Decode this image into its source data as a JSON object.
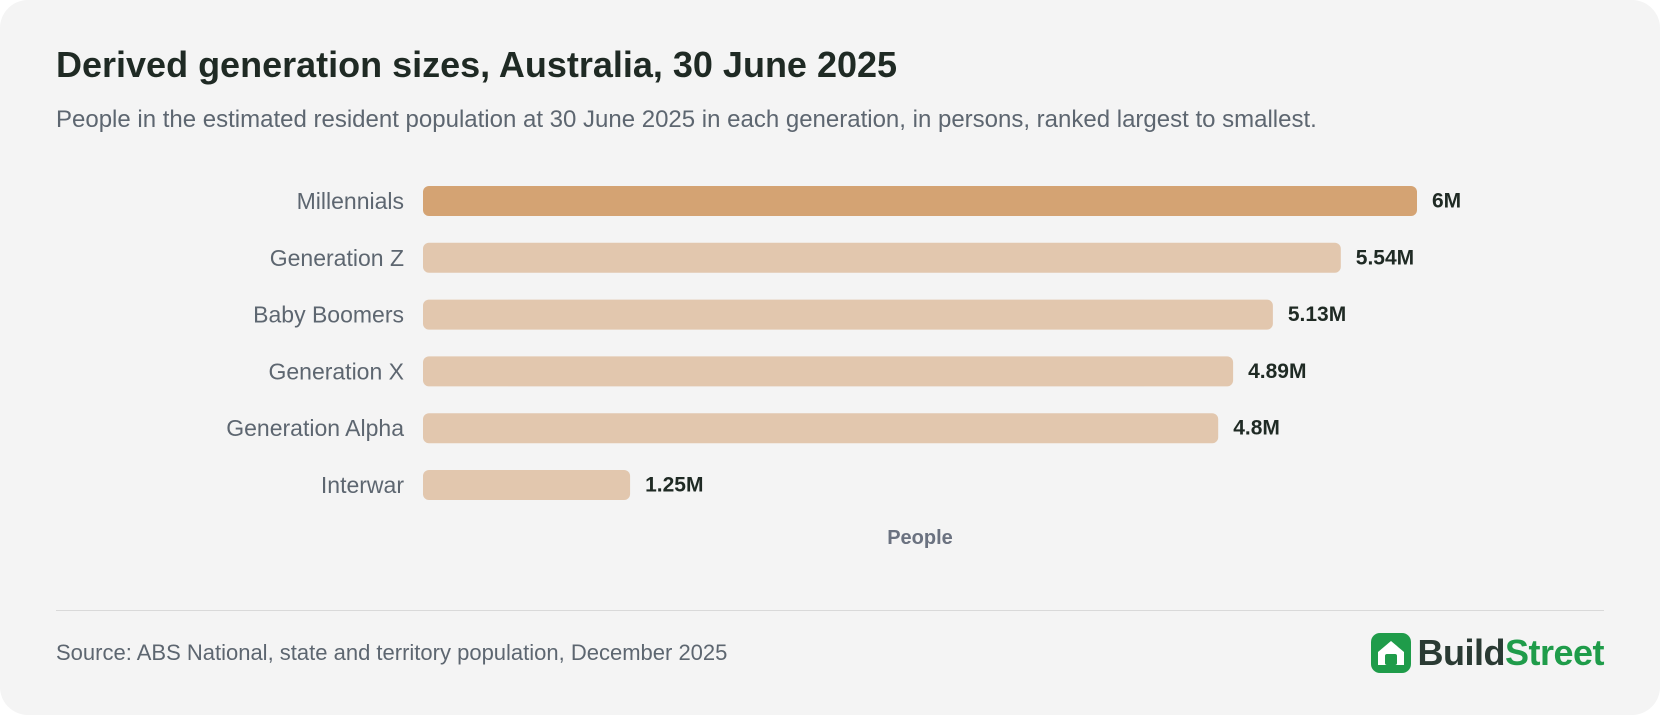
{
  "header": {
    "title": "Derived generation sizes, Australia, 30 June 2025",
    "subtitle": "People in the estimated resident population at 30 June 2025 in each generation, in persons, ranked largest to smallest."
  },
  "chart_data": {
    "type": "bar",
    "orientation": "horizontal",
    "categories": [
      "Millennials",
      "Generation Z",
      "Baby Boomers",
      "Generation X",
      "Generation Alpha",
      "Interwar"
    ],
    "values": [
      6000000,
      5540000,
      5130000,
      4890000,
      4800000,
      1250000
    ],
    "value_labels": [
      "6M",
      "5.54M",
      "5.13M",
      "4.89M",
      "4.8M",
      "1.25M"
    ],
    "xlabel": "People",
    "ylabel": "",
    "xlim": [
      0,
      6000000
    ],
    "grid": false,
    "highlight_index": 0,
    "colors": {
      "highlight": "#d4a373",
      "bar": "#e2c7ae",
      "category_text": "#5d6670",
      "value_text": "#1f2a24",
      "axis_label": "#6b7280"
    }
  },
  "footer": {
    "source": "Source: ABS National, state and territory population, December 2025",
    "logo_part1": "Build",
    "logo_part2": "Street",
    "logo_icon": "house-icon"
  }
}
